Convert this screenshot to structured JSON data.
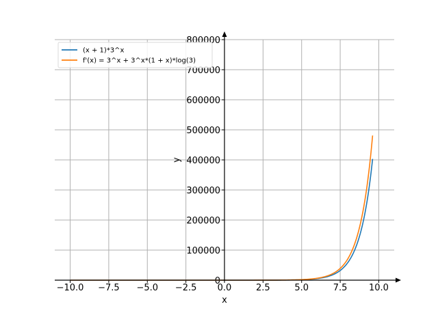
{
  "chart_data": {
    "type": "line",
    "xlabel": "x",
    "ylabel": "y",
    "xlim": [
      -11.0,
      11.0
    ],
    "ylim": [
      0,
      800000
    ],
    "grid": true,
    "legend_position": "top-left",
    "x_ticks": [
      -10.0,
      -7.5,
      -5.0,
      -2.5,
      0.0,
      2.5,
      5.0,
      7.5,
      10.0
    ],
    "x_tick_labels": [
      "−10.0",
      "−7.5",
      "−5.0",
      "−2.5",
      "0.0",
      "2.5",
      "5.0",
      "7.5",
      "10.0"
    ],
    "y_ticks": [
      0,
      100000,
      200000,
      300000,
      400000,
      500000,
      600000,
      700000,
      800000
    ],
    "y_tick_labels": [
      "0",
      "100000",
      "200000",
      "300000",
      "400000",
      "500000",
      "600000",
      "700000",
      "800000"
    ],
    "x_range": [
      -10,
      9.6
    ],
    "series": [
      {
        "name": "(x + 1)*3^x",
        "expression": "(x + 1)*3^x",
        "color": "#1f77b4",
        "x": [
          -10,
          -7.5,
          -5,
          -2.5,
          0,
          2.5,
          5,
          6,
          7,
          7.5,
          8,
          8.5,
          9,
          9.6
        ],
        "values": [
          -0.0002,
          -0.0017,
          -0.0165,
          -0.096,
          1,
          54.6,
          1458,
          5103,
          17496,
          32210,
          59049,
          108200,
          196830,
          400300
        ]
      },
      {
        "name": "f'(x) = 3^x + 3^x*(1 + x)*log(3)",
        "expression": "3^x + 3^x*(1 + x)*log(3)",
        "color": "#ff7f0e",
        "x": [
          -10,
          -7.5,
          -5,
          -2.5,
          0,
          2.5,
          5,
          6,
          7,
          7.5,
          8,
          8.5,
          9,
          9.6
        ],
        "values": [
          -0.0002,
          -0.0014,
          -0.014,
          -0.042,
          2.1,
          75.4,
          1845,
          6335,
          21408,
          39170,
          71430,
          130320,
          236030,
          478120
        ]
      }
    ]
  }
}
